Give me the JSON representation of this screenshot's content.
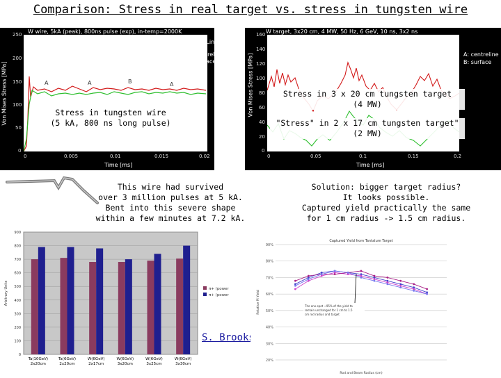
{
  "title": "Comparison: Stress in real target vs. stress in tungsten wire",
  "left_plot": {
    "header": "W wire, 5kA (peak), 800ns pulse (exp), in-temp=2000K",
    "ylabel": "Von Mises Stress [MPa]",
    "xlabel": "Time [ms]",
    "legend": [
      "Temp. Lines",
      "A: centreline",
      "B: surface"
    ],
    "yticks": [
      "250",
      "200",
      "150",
      "100",
      "50",
      "0"
    ],
    "xticks": [
      "0",
      "0.005",
      "0.01",
      "0.015",
      "0.02"
    ],
    "caption": "Stress in tungsten wire\n(5 kA, 800 ns long pulse)"
  },
  "right_plot": {
    "header": "W target, 3x20 cm, 4 MW, 50 Hz, 6 GeV, 10 ns, 3x2 ns",
    "ylabel": "Von Mises Stress [MPa]",
    "xlabel": "Time [ms]",
    "legend": [
      "A: centreline",
      "B: surface"
    ],
    "yticks": [
      "160",
      "140",
      "120",
      "100",
      "80",
      "60",
      "40",
      "20",
      "0"
    ],
    "xticks": [
      "0",
      "0.05",
      "0.1",
      "0.15",
      "0.2"
    ],
    "caption1": "Stress in 3 x 20 cm tungsten target\n(4 MW)",
    "caption2": "\"Stress\" in 2 x 17 cm tungsten target\"\n(2 MW)"
  },
  "wire_text": "This wire had survived\nover 3 million pulses at 5 kA.\nBent into this severe shape\nwithin a few minutes at 7.2 kA.",
  "solution_text": "Solution: bigger target radius?\nIt looks possible.\nCaptured yield practically the same\nfor 1 cm radius -> 1.5 cm radius.",
  "author": "S. Brooks",
  "bar_chart_meta": {
    "ylabel": "Arbitrary Units",
    "yticks": [
      "900",
      "800",
      "700",
      "600",
      "500",
      "400",
      "300",
      "200",
      "100",
      "0"
    ]
  },
  "line_chart_meta": {
    "yticks": [
      "90%",
      "80%",
      "70%",
      "60%",
      "50%",
      "40%",
      "30%",
      "20%"
    ],
    "ylabel": "Relative Pi Yield",
    "xlabel": "Rod and Beam Radius (cm)"
  },
  "colors": {
    "green": "#2fbf2f",
    "red": "#d21919",
    "bar_maroon": "#8a3b5f",
    "bar_navy": "#1f1f8f"
  },
  "chart_data": [
    {
      "type": "bar",
      "categories": [
        "Ta(10GeV)\n2x20cm",
        "Ta(6GeV)\n2x20cm",
        "W(6GeV)\n2x17cm",
        "W(6GeV)\n3x20cm",
        "W(6GeV)\n3x25cm",
        "W(6GeV)\n3x30cm"
      ],
      "series": [
        {
          "name": "π+ (power",
          "values": [
            700,
            710,
            680,
            680,
            690,
            705
          ]
        },
        {
          "name": "π+ (power",
          "values": [
            790,
            790,
            780,
            700,
            740,
            800
          ]
        }
      ],
      "ylim": [
        0,
        900
      ],
      "ylabel": "Arbitrary Units",
      "legend": "right"
    },
    {
      "type": "line",
      "title": "Captured Yield from Tantalum Target",
      "xlabel": "Rod and Beam Radius (cm)",
      "ylabel": "Relative Pi Yield",
      "x": [
        0.3,
        0.5,
        0.7,
        0.9,
        1.1,
        1.3,
        1.5,
        1.7,
        1.9,
        2.1,
        2.3
      ],
      "series": [
        {
          "values": [
            0.66,
            0.7,
            0.73,
            0.74,
            0.73,
            0.72,
            0.7,
            0.68,
            0.66,
            0.64,
            0.61
          ]
        },
        {
          "values": [
            0.63,
            0.68,
            0.71,
            0.73,
            0.72,
            0.71,
            0.69,
            0.67,
            0.65,
            0.63,
            0.6
          ]
        },
        {
          "values": [
            0.68,
            0.71,
            0.72,
            0.72,
            0.73,
            0.74,
            0.71,
            0.7,
            0.68,
            0.66,
            0.63
          ]
        },
        {
          "values": [
            0.65,
            0.69,
            0.72,
            0.74,
            0.73,
            0.7,
            0.68,
            0.66,
            0.64,
            0.62,
            0.6
          ]
        }
      ],
      "ylim": [
        0.2,
        0.9
      ],
      "annotation": "The one-spot ~95% of the yield to remain unchanged for 1 cm to 1.5 cm rod radius and target"
    }
  ]
}
